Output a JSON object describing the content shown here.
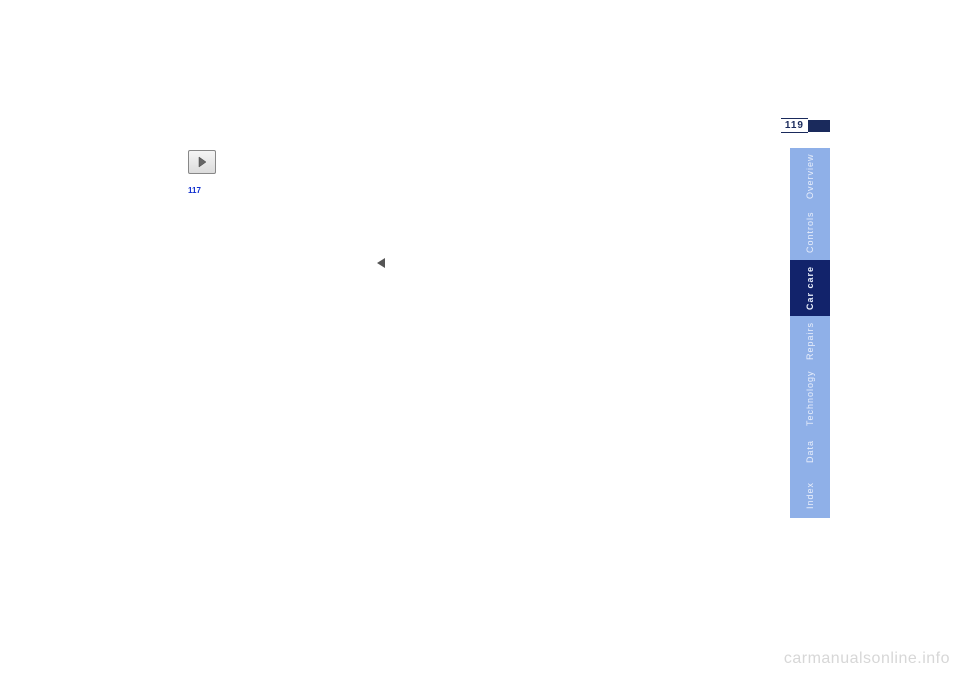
{
  "page": {
    "number": "119",
    "watermark": "carmanualsonline.info"
  },
  "nav_button": {
    "icon": "play-right"
  },
  "manual": {
    "p1": "",
    "p2": "",
    "p3": "",
    "p4": "",
    "p5": "",
    "p6": "",
    "link_page": "117",
    "p7": "",
    "p8": ""
  },
  "side_tabs": [
    {
      "label": "Overview",
      "style": "light",
      "height": 56
    },
    {
      "label": "Controls",
      "style": "light",
      "height": 56
    },
    {
      "label": "Car care",
      "style": "dark",
      "height": 56
    },
    {
      "label": "Repairs",
      "style": "light",
      "height": 50
    },
    {
      "label": "Technology",
      "style": "light",
      "height": 64
    },
    {
      "label": "Data",
      "style": "light",
      "height": 42
    },
    {
      "label": "Index",
      "style": "light",
      "height": 46
    }
  ],
  "colors": {
    "tab_light_bg": "#8fb0e8",
    "tab_dark_bg": "#12236b",
    "tab_text": "#e8eefb",
    "page_num_text": "#1a2a5c",
    "link_blue": "#1030d0",
    "watermark": "#d7d7d7",
    "background": "#ffffff"
  }
}
